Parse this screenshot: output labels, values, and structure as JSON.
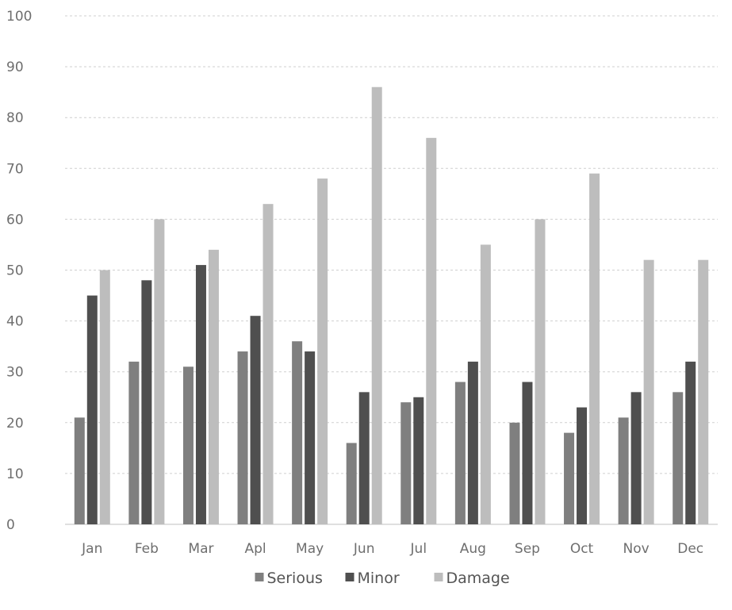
{
  "chart_data": {
    "type": "bar",
    "categories": [
      "Jan",
      "Feb",
      "Mar",
      "Apl",
      "May",
      "Jun",
      "Jul",
      "Aug",
      "Sep",
      "Oct",
      "Nov",
      "Dec"
    ],
    "series": [
      {
        "name": "Serious",
        "color": "#7f7f7f",
        "values": [
          21,
          32,
          31,
          34,
          36,
          16,
          24,
          28,
          20,
          18,
          21,
          26
        ]
      },
      {
        "name": "Minor",
        "color": "#4f4f4f",
        "values": [
          45,
          48,
          51,
          41,
          34,
          26,
          25,
          32,
          28,
          23,
          26,
          32
        ]
      },
      {
        "name": "Damage",
        "color": "#bdbdbd",
        "values": [
          50,
          60,
          54,
          63,
          68,
          86,
          76,
          55,
          60,
          69,
          52,
          52
        ]
      }
    ],
    "ylim": [
      0,
      100
    ],
    "yticks": [
      "0",
      "10",
      "20",
      "30",
      "40",
      "50",
      "60",
      "70",
      "80",
      "90",
      "100"
    ],
    "grid": true,
    "legend_position": "bottom"
  }
}
